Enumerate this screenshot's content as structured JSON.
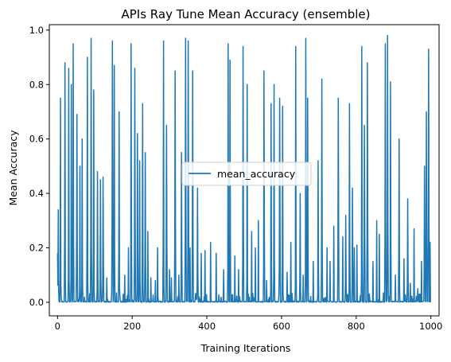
{
  "chart_data": {
    "type": "line",
    "title": "APIs Ray Tune Mean Accuracy (ensemble)",
    "xlabel": "Training Iterations",
    "ylabel": "Mean Accuracy",
    "xlim": [
      -22,
      1022
    ],
    "ylim": [
      -0.05,
      1.02
    ],
    "xticks": [
      0,
      200,
      400,
      600,
      800,
      1000
    ],
    "yticks": [
      0.0,
      0.2,
      0.4,
      0.6,
      0.8,
      1.0
    ],
    "ytick_labels": [
      "0.0",
      "0.2",
      "0.4",
      "0.6",
      "0.8",
      "1.0"
    ],
    "grid": false,
    "legend": {
      "placement": "center",
      "entries": [
        "mean_accuracy"
      ]
    },
    "colors": {
      "series": "#1f77b4"
    },
    "series": [
      {
        "name": "mean_accuracy",
        "peaks": [
          [
            0,
            0.18
          ],
          [
            2,
            0.34
          ],
          [
            8,
            0.75
          ],
          [
            20,
            0.88
          ],
          [
            30,
            0.86
          ],
          [
            37,
            0.8
          ],
          [
            42,
            0.95
          ],
          [
            52,
            0.69
          ],
          [
            60,
            0.5
          ],
          [
            66,
            0.6
          ],
          [
            80,
            0.9
          ],
          [
            90,
            0.97
          ],
          [
            97,
            0.78
          ],
          [
            107,
            0.48
          ],
          [
            115,
            0.45
          ],
          [
            122,
            0.46
          ],
          [
            132,
            0.09
          ],
          [
            147,
            0.96
          ],
          [
            152,
            0.87
          ],
          [
            165,
            0.7
          ],
          [
            180,
            0.1
          ],
          [
            190,
            0.2
          ],
          [
            197,
            0.95
          ],
          [
            207,
            0.86
          ],
          [
            214,
            0.62
          ],
          [
            220,
            0.52
          ],
          [
            228,
            0.73
          ],
          [
            235,
            0.55
          ],
          [
            242,
            0.26
          ],
          [
            250,
            0.09
          ],
          [
            262,
            0.08
          ],
          [
            268,
            0.2
          ],
          [
            284,
            0.96
          ],
          [
            292,
            0.65
          ],
          [
            300,
            0.12
          ],
          [
            305,
            0.09
          ],
          [
            315,
            0.85
          ],
          [
            325,
            0.1
          ],
          [
            332,
            0.55
          ],
          [
            343,
            0.97
          ],
          [
            350,
            0.96
          ],
          [
            355,
            0.2
          ],
          [
            362,
            0.85
          ],
          [
            375,
            0.42
          ],
          [
            385,
            0.18
          ],
          [
            395,
            0.19
          ],
          [
            410,
            0.22
          ],
          [
            425,
            0.18
          ],
          [
            445,
            0.12
          ],
          [
            457,
            0.95
          ],
          [
            462,
            0.89
          ],
          [
            475,
            0.17
          ],
          [
            485,
            0.12
          ],
          [
            497,
            0.94
          ],
          [
            508,
            0.8
          ],
          [
            520,
            0.26
          ],
          [
            530,
            0.2
          ],
          [
            538,
            0.3
          ],
          [
            553,
            0.85
          ],
          [
            560,
            0.08
          ],
          [
            572,
            0.73
          ],
          [
            580,
            0.8
          ],
          [
            595,
            0.75
          ],
          [
            603,
            0.72
          ],
          [
            615,
            0.11
          ],
          [
            625,
            0.22
          ],
          [
            638,
            0.94
          ],
          [
            650,
            0.4
          ],
          [
            658,
            0.1
          ],
          [
            665,
            0.97
          ],
          [
            670,
            0.75
          ],
          [
            685,
            0.15
          ],
          [
            698,
            0.52
          ],
          [
            708,
            0.82
          ],
          [
            722,
            0.2
          ],
          [
            730,
            0.15
          ],
          [
            740,
            0.28
          ],
          [
            752,
            0.75
          ],
          [
            764,
            0.24
          ],
          [
            772,
            0.32
          ],
          [
            782,
            0.73
          ],
          [
            790,
            0.42
          ],
          [
            795,
            0.2
          ],
          [
            802,
            0.21
          ],
          [
            815,
            0.94
          ],
          [
            822,
            0.65
          ],
          [
            830,
            0.88
          ],
          [
            845,
            0.15
          ],
          [
            855,
            0.3
          ],
          [
            862,
            0.25
          ],
          [
            878,
            0.95
          ],
          [
            884,
            0.98
          ],
          [
            892,
            0.81
          ],
          [
            905,
            0.1
          ],
          [
            915,
            0.6
          ],
          [
            928,
            0.16
          ],
          [
            938,
            0.38
          ],
          [
            945,
            0.07
          ],
          [
            955,
            0.27
          ],
          [
            965,
            0.05
          ],
          [
            975,
            0.15
          ],
          [
            983,
            0.5
          ],
          [
            988,
            0.7
          ],
          [
            994,
            0.93
          ],
          [
            998,
            0.22
          ]
        ]
      }
    ]
  }
}
